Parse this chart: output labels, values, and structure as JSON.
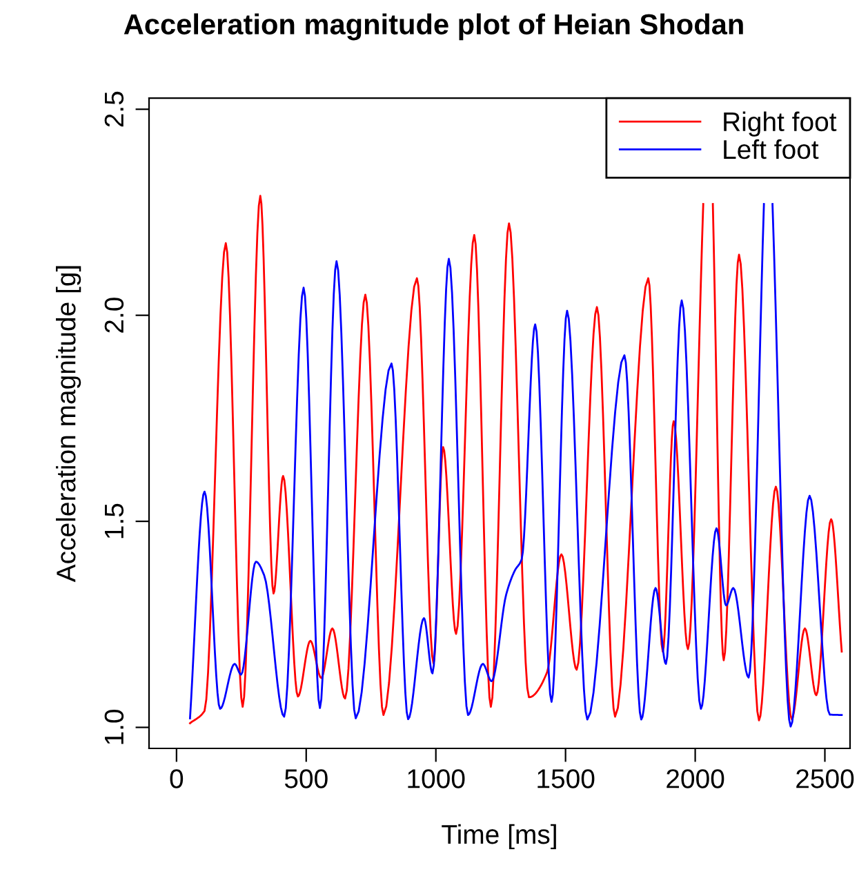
{
  "chart_data": {
    "type": "line",
    "title": "Acceleration magnitude plot of Heian Shodan",
    "xlabel": "Time [ms]",
    "ylabel": "Acceleration magnitude [g]",
    "xlim": [
      -106,
      2597
    ],
    "ylim": [
      0.949,
      2.527
    ],
    "xticks": [
      0,
      500,
      1000,
      1500,
      2000,
      2500
    ],
    "yticks": [
      {
        "value": 1,
        "label": "1.0"
      },
      1.5,
      {
        "value": 2,
        "label": "2.0"
      },
      2.5
    ],
    "grid": false,
    "legend": "top right",
    "line_style": "solid",
    "marker": "none",
    "series": [
      {
        "name": "Right foot",
        "color": "#ff0000",
        "x": [
          52,
          108,
          190,
          255,
          323,
          374,
          411,
          468,
          516,
          558,
          601,
          650,
          728,
          798,
          927,
          991,
          1028,
          1078,
          1148,
          1212,
          1282,
          1359,
          1429,
          1484,
          1543,
          1621,
          1691,
          1819,
          1875,
          1917,
          1972,
          2031,
          2050,
          2068,
          2110,
          2169,
          2246,
          2311,
          2372,
          2423,
          2467,
          2524,
          2565
        ],
        "values": [
          1.01,
          1.04,
          2.175,
          1.05,
          2.29,
          1.325,
          1.61,
          1.075,
          1.21,
          1.12,
          1.24,
          1.07,
          2.05,
          1.03,
          2.09,
          1.155,
          1.68,
          1.227,
          2.195,
          1.05,
          2.223,
          1.073,
          1.134,
          1.42,
          1.14,
          2.02,
          1.026,
          2.09,
          1.184,
          1.743,
          1.19,
          2.27,
          null,
          2.27,
          1.163,
          2.147,
          1.017,
          1.584,
          1.02,
          1.24,
          1.078,
          1.505,
          1.184
        ]
      },
      {
        "name": "Left foot",
        "color": "#0000ff",
        "x": [
          52,
          108,
          168,
          224,
          249,
          306,
          338,
          415,
          490,
          553,
          617,
          691,
          829,
          893,
          954,
          987,
          1050,
          1124,
          1181,
          1215,
          1271,
          1304,
          1331,
          1383,
          1446,
          1506,
          1584,
          1727,
          1792,
          1847,
          1887,
          1948,
          2022,
          2082,
          2119,
          2147,
          2206,
          2265,
          2280,
          2298,
          2368,
          2441,
          2519,
          2565
        ],
        "values": [
          1.022,
          1.572,
          1.045,
          1.154,
          1.128,
          1.402,
          1.369,
          1.026,
          2.067,
          1.047,
          2.131,
          1.022,
          1.883,
          1.02,
          1.265,
          1.131,
          2.137,
          1.03,
          1.154,
          1.112,
          1.322,
          1.38,
          1.408,
          1.978,
          1.062,
          2.011,
          1.019,
          1.903,
          1.019,
          1.338,
          1.154,
          2.036,
          1.045,
          1.483,
          1.296,
          1.338,
          1.121,
          2.27,
          null,
          2.27,
          1.002,
          1.562,
          1.031,
          1.03
        ]
      }
    ]
  }
}
